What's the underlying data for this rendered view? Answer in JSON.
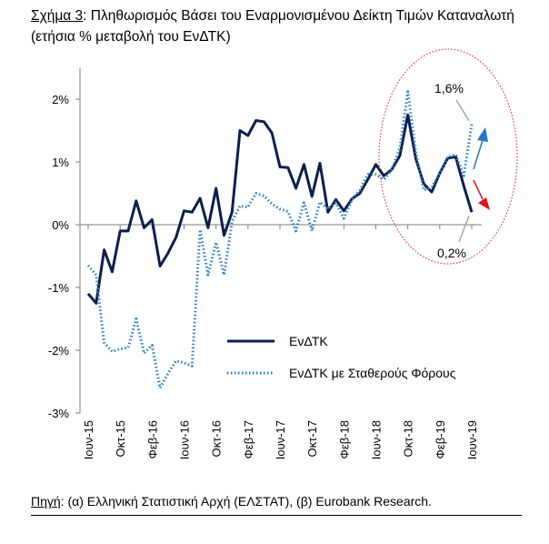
{
  "title": {
    "lead": "Σχήμα 3",
    "text": ": Πληθωρισμός Βάσει του Εναρμονισμένου Δείκτη Τιμών Καταναλωτή (ετήσια % μεταβολή του ΕνΔΤΚ)"
  },
  "source": {
    "lead": "Πηγή",
    "text": ": (α) Ελληνική Στατιστική Αρχή (ΕΛΣΤΑΤ), (β) Eurobank Research."
  },
  "colors": {
    "hicp": "#0b1f4e",
    "hicp_ct": "#2f7fc1",
    "circle": "#d21f1f",
    "arrow_up": "#1f78c8",
    "arrow_down": "#e0141e"
  },
  "chart_data": {
    "type": "line",
    "title": "Πληθωρισμός Βάσει του Εναρμονισμένου Δείκτη Τιμών Καταναλωτή (ετήσια % μεταβολή του ΕνΔΤΚ)",
    "ylim": [
      -3,
      2.5
    ],
    "yticks": [
      2,
      1,
      0,
      -1,
      -2,
      -3
    ],
    "ytick_labels": [
      "2%",
      "1%",
      "0%",
      "-1%",
      "-2%",
      "-3%"
    ],
    "xtick_labels": [
      "Ιουν-15",
      "Οκτ-15",
      "Φεβ-16",
      "Ιουν-16",
      "Οκτ-16",
      "Φεβ-17",
      "Ιουν-17",
      "Οκτ-17",
      "Φεβ-18",
      "Ιουν-18",
      "Οκτ-18",
      "Φεβ-19",
      "Ιουν-19"
    ],
    "legend_position": "center-right",
    "series": [
      {
        "name": "ΕνΔΤΚ",
        "style": "solid",
        "values": [
          -1.1,
          -1.25,
          -0.4,
          -0.75,
          -0.1,
          -0.1,
          0.38,
          -0.05,
          0.08,
          -0.66,
          -0.45,
          -0.2,
          0.22,
          0.2,
          0.42,
          -0.05,
          0.58,
          -0.17,
          0.2,
          1.5,
          1.42,
          1.66,
          1.64,
          1.46,
          0.92,
          0.91,
          0.58,
          0.96,
          0.45,
          0.98,
          0.2,
          0.4,
          0.22,
          0.41,
          0.5,
          0.72,
          0.96,
          0.78,
          0.88,
          1.1,
          1.75,
          1.05,
          0.65,
          0.52,
          0.82,
          1.06,
          1.08,
          0.62,
          0.2
        ]
      },
      {
        "name": "ΕνΔΤΚ με Σταθερούς Φόρους",
        "style": "dotted",
        "values": [
          -0.65,
          -0.8,
          -1.88,
          -2.02,
          -1.98,
          -1.96,
          -1.5,
          -2.05,
          -1.92,
          -2.6,
          -2.37,
          -2.17,
          -2.2,
          -2.25,
          -0.08,
          -0.8,
          -0.28,
          -0.8,
          0.05,
          0.3,
          0.28,
          0.5,
          0.46,
          0.33,
          0.25,
          0.21,
          -0.1,
          0.35,
          -0.1,
          0.36,
          0.25,
          0.35,
          0.1,
          0.4,
          0.55,
          0.8,
          0.8,
          0.72,
          0.88,
          1.22,
          2.12,
          1.15,
          0.55,
          0.6,
          0.82,
          1.08,
          1.12,
          0.78,
          1.6
        ]
      }
    ],
    "annotations": [
      {
        "text": "1,6%",
        "target_series": 1
      },
      {
        "text": "0,2%",
        "target_series": 0
      }
    ]
  }
}
